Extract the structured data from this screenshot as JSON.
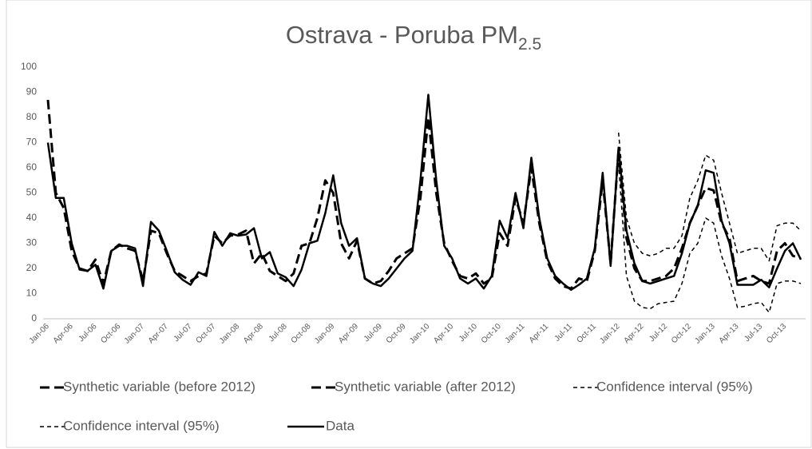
{
  "chart_data": {
    "type": "line",
    "title": "Ostrava - Poruba PM",
    "title_subscript": "2.5",
    "categories": [
      "Jan-06",
      null,
      null,
      "Apr-06",
      null,
      null,
      "Jul-06",
      null,
      null,
      "Oct-06",
      null,
      null,
      "Jan-07",
      null,
      null,
      "Apr-07",
      null,
      null,
      "Jul-07",
      null,
      null,
      "Oct-07",
      null,
      null,
      "Jan-08",
      null,
      null,
      "Apr-08",
      null,
      null,
      "Jul-08",
      null,
      null,
      "Oct-08",
      null,
      null,
      "Jan-09",
      null,
      null,
      "Apr-09",
      null,
      null,
      "Jul-09",
      null,
      null,
      "Oct-09",
      null,
      null,
      "Jan-10",
      null,
      null,
      "Apr-10",
      null,
      null,
      "Jul-10",
      null,
      null,
      "Oct-10",
      null,
      null,
      "Jan-11",
      null,
      null,
      "Apr-11",
      null,
      null,
      "Jul-11",
      null,
      null,
      "Oct-11",
      null,
      null,
      "Jan-12",
      null,
      null,
      "Apr-12",
      null,
      null,
      "Jul-12",
      null,
      null,
      "Oct-12",
      null,
      null,
      "Jan-13",
      null,
      null,
      "Apr-13",
      null,
      null,
      "Jul-13",
      null,
      null,
      "Oct-13",
      null,
      null
    ],
    "series": [
      {
        "name": "Synthetic variable (before 2012)",
        "color": "#000000",
        "style": "dashed",
        "values": [
          87,
          50,
          44,
          27,
          20,
          19,
          23.5,
          14,
          27,
          29.5,
          28,
          27,
          15,
          35,
          34,
          26,
          19,
          17,
          15,
          17,
          18,
          33,
          30,
          33,
          33.5,
          35,
          22,
          26,
          19,
          17,
          15,
          18,
          29,
          30,
          40,
          55,
          50,
          30,
          24,
          31,
          16,
          14,
          15,
          19,
          24,
          26,
          28,
          48,
          80,
          50,
          30,
          23,
          17,
          16,
          18,
          14,
          16,
          34,
          29,
          48,
          38,
          60,
          38,
          23,
          16,
          13,
          12,
          16,
          15,
          27,
          55,
          22,
          67,
          null,
          null,
          null,
          null,
          null,
          null,
          null,
          null,
          null,
          null,
          null,
          null,
          null,
          null,
          null,
          null,
          null,
          null,
          null,
          null,
          null,
          null,
          null
        ]
      },
      {
        "name": "Synthetic variable (after 2012)",
        "color": "#000000",
        "style": "dashed",
        "values": [
          null,
          null,
          null,
          null,
          null,
          null,
          null,
          null,
          null,
          null,
          null,
          null,
          null,
          null,
          null,
          null,
          null,
          null,
          null,
          null,
          null,
          null,
          null,
          null,
          null,
          null,
          null,
          null,
          null,
          null,
          null,
          null,
          null,
          null,
          null,
          null,
          null,
          null,
          null,
          null,
          null,
          null,
          null,
          null,
          null,
          null,
          null,
          null,
          null,
          null,
          null,
          null,
          null,
          null,
          null,
          null,
          null,
          null,
          null,
          null,
          null,
          null,
          null,
          null,
          null,
          null,
          null,
          null,
          null,
          null,
          null,
          null,
          67,
          32,
          20,
          15,
          15,
          16,
          17,
          20,
          28,
          38,
          45,
          52,
          51,
          38,
          32,
          15,
          16,
          17,
          15,
          14,
          27,
          30,
          25,
          24
        ]
      },
      {
        "name": "Confidence interval (95%)",
        "color": "#000000",
        "style": "dotted",
        "values": [
          null,
          null,
          null,
          null,
          null,
          null,
          null,
          null,
          null,
          null,
          null,
          null,
          null,
          null,
          null,
          null,
          null,
          null,
          null,
          null,
          null,
          null,
          null,
          null,
          null,
          null,
          null,
          null,
          null,
          null,
          null,
          null,
          null,
          null,
          null,
          null,
          null,
          null,
          null,
          null,
          null,
          null,
          null,
          null,
          null,
          null,
          null,
          null,
          null,
          null,
          null,
          null,
          null,
          null,
          null,
          null,
          null,
          null,
          null,
          null,
          null,
          null,
          null,
          null,
          null,
          null,
          null,
          null,
          null,
          null,
          null,
          null,
          74,
          40,
          30,
          26,
          25,
          26,
          28,
          28,
          33,
          48,
          55,
          65,
          63,
          50,
          38,
          26,
          27,
          28,
          28,
          23,
          37,
          38,
          38,
          35
        ]
      },
      {
        "name": "Confidence interval (95%)",
        "color": "#000000",
        "style": "dotted",
        "values": [
          null,
          null,
          null,
          null,
          null,
          null,
          null,
          null,
          null,
          null,
          null,
          null,
          null,
          null,
          null,
          null,
          null,
          null,
          null,
          null,
          null,
          null,
          null,
          null,
          null,
          null,
          null,
          null,
          null,
          null,
          null,
          null,
          null,
          null,
          null,
          null,
          null,
          null,
          null,
          null,
          null,
          null,
          null,
          null,
          null,
          null,
          null,
          null,
          null,
          null,
          null,
          null,
          null,
          null,
          null,
          null,
          null,
          null,
          null,
          null,
          null,
          null,
          null,
          null,
          null,
          null,
          null,
          null,
          null,
          null,
          null,
          null,
          62,
          17,
          7,
          4.5,
          4,
          6,
          6.5,
          7,
          14,
          26,
          30,
          40,
          38,
          25,
          16,
          4.5,
          5,
          6,
          6.5,
          2.5,
          14,
          15,
          15,
          14
        ]
      },
      {
        "name": "Data",
        "color": "#000000",
        "style": "solid",
        "values": [
          70,
          48,
          48,
          30,
          19.5,
          19,
          21.5,
          12,
          27,
          29,
          29,
          28,
          13,
          38.5,
          35,
          27,
          18.5,
          15.5,
          13.5,
          18.5,
          17,
          34.5,
          29,
          34,
          33,
          33.5,
          36,
          24,
          26.5,
          18,
          16.5,
          13,
          19.5,
          30,
          31,
          42,
          57,
          38,
          29,
          32,
          16,
          14,
          13,
          16,
          20,
          24,
          27,
          55,
          89,
          55,
          29,
          24,
          16,
          14,
          16,
          12,
          17,
          39,
          32,
          50,
          36,
          64,
          40,
          24,
          17,
          14,
          11.5,
          13.5,
          16,
          28,
          58,
          21,
          68,
          35,
          22,
          15,
          14,
          15,
          16,
          17,
          26,
          38,
          45,
          59,
          58,
          39,
          30,
          13.5,
          13.5,
          13.5,
          15.5,
          12.5,
          20,
          27,
          30,
          23.5
        ]
      }
    ],
    "ylim": [
      0,
      100
    ],
    "yticks": [
      0,
      10,
      20,
      30,
      40,
      50,
      60,
      70,
      80,
      90,
      100
    ],
    "grid": false,
    "legend": "bottom"
  }
}
